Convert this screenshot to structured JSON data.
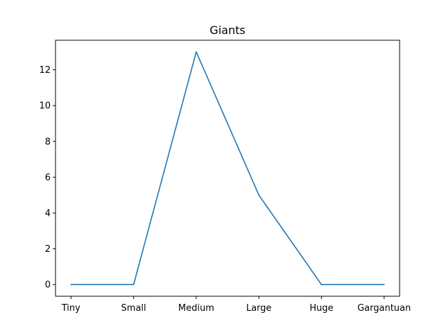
{
  "chart_data": {
    "type": "line",
    "title": "Giants",
    "xlabel": "",
    "ylabel": "",
    "categories": [
      "Tiny",
      "Small",
      "Medium",
      "Large",
      "Huge",
      "Gargantuan"
    ],
    "series": [
      {
        "values": [
          0,
          0,
          13,
          5,
          0,
          0
        ],
        "color": "#1f77b4"
      }
    ],
    "ylim": [
      -0.65,
      13.65
    ],
    "yticks": [
      0,
      2,
      4,
      6,
      8,
      10,
      12
    ],
    "grid": false,
    "legend": "none"
  }
}
